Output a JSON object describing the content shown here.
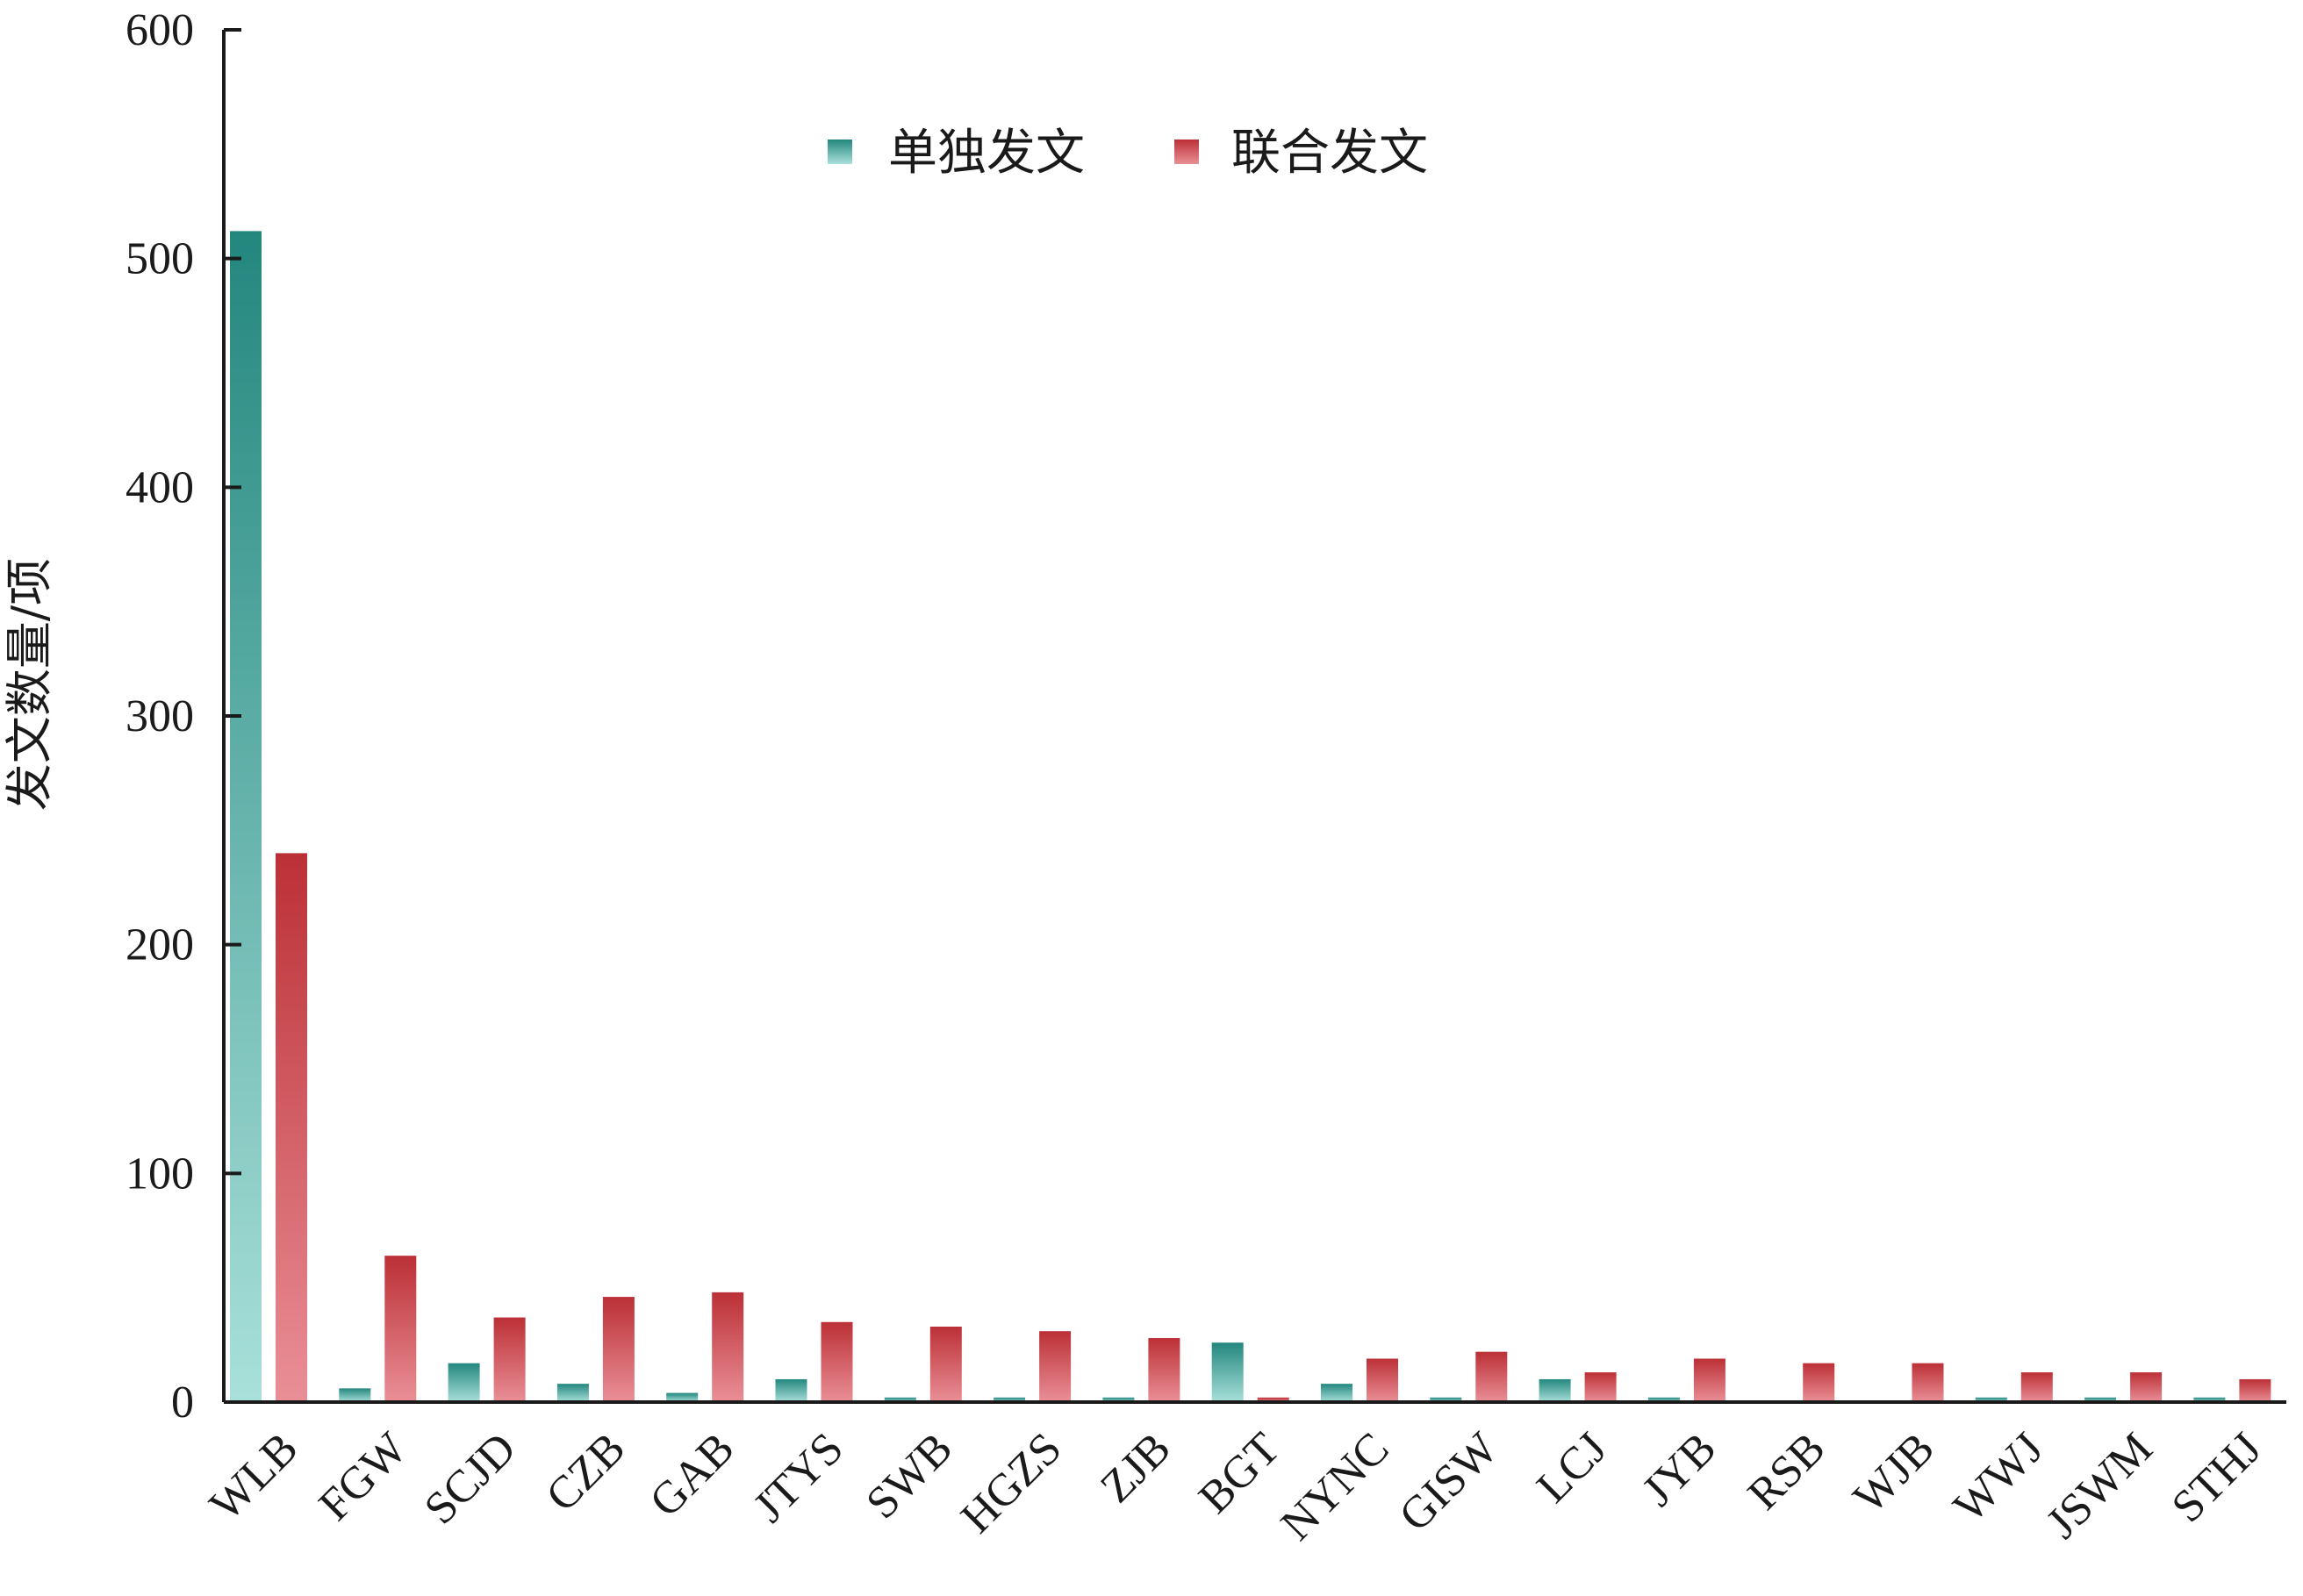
{
  "chart_data": {
    "type": "bar",
    "title": "",
    "xlabel": "",
    "ylabel": "发文数量/项",
    "ylim": [
      0,
      600
    ],
    "yticks": [
      0,
      100,
      200,
      300,
      400,
      500,
      600
    ],
    "grid": false,
    "legend_position": "top-center",
    "categories": [
      "WLB",
      "FGW",
      "SCJD",
      "CZB",
      "GAB",
      "JTYS",
      "SWB",
      "HGZS",
      "ZJB",
      "BGT",
      "NYNC",
      "GISW",
      "LCJ",
      "JYB",
      "RSB",
      "WJB",
      "WWJ",
      "JSWM",
      "STHJ"
    ],
    "series": [
      {
        "name": "单独发文",
        "color": "#2a8f86",
        "color_light": "#a8ded9",
        "values": [
          512,
          6,
          17,
          8,
          4,
          10,
          2,
          2,
          2,
          26,
          8,
          2,
          10,
          2,
          0,
          0,
          2,
          2,
          2
        ]
      },
      {
        "name": "联合发文",
        "color": "#c0363c",
        "color_light": "#e88a92",
        "values": [
          240,
          64,
          37,
          46,
          48,
          35,
          33,
          31,
          28,
          2,
          19,
          22,
          13,
          19,
          17,
          17,
          13,
          13,
          10
        ]
      }
    ]
  }
}
